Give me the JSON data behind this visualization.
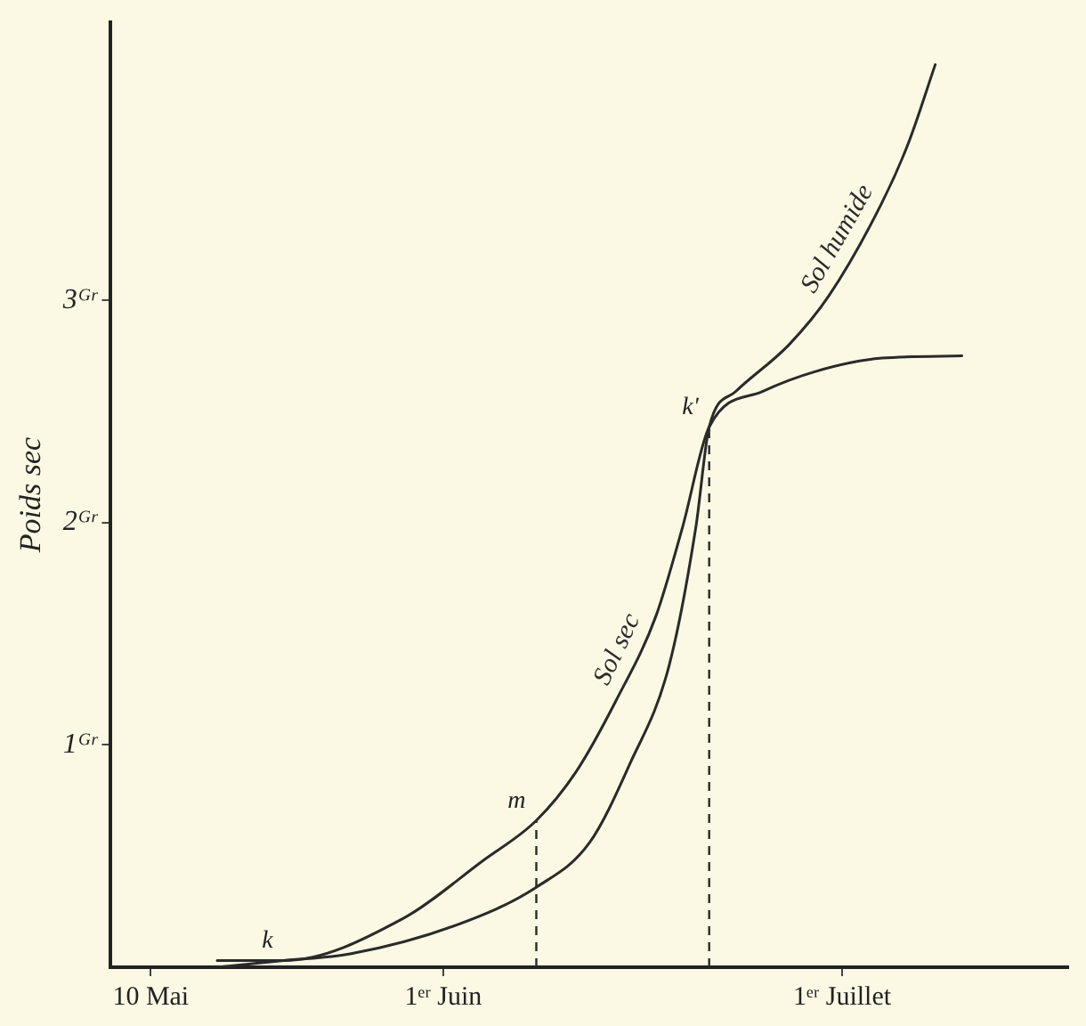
{
  "chart_data": {
    "type": "line",
    "ylabel": "Poids sec",
    "xlim": [
      "--05-07",
      "--07-18"
    ],
    "xticks": [
      {
        "value": "--05-10",
        "label": "10 Mai"
      },
      {
        "value": "--06-01",
        "label": "1ᵉʳ Juin"
      },
      {
        "value": "--07-01",
        "label": "1ᵉʳ Juillet"
      }
    ],
    "ylim": [
      0,
      4.25
    ],
    "yticks": [
      {
        "value": 1,
        "label": "1ᴳʳ"
      },
      {
        "value": 2,
        "label": "2ᴳʳ"
      },
      {
        "value": 3,
        "label": "3ᴳʳ"
      }
    ],
    "grid": false,
    "legend": false,
    "marker": "none",
    "line_style": "solid",
    "series": [
      {
        "name": "Sol sec",
        "color": "#2a2a2a",
        "x": [
          "--05-15",
          "--05-20",
          "--05-29",
          "--06-04",
          "--06-08",
          "--06-11",
          "--06-14",
          "--06-17",
          "--06-19",
          "--06-21",
          "--06-25",
          "--06-29",
          "--07-04",
          "--07-10"
        ],
        "values": [
          0.03,
          0.03,
          0.22,
          0.48,
          0.66,
          0.88,
          1.2,
          1.58,
          1.98,
          2.43,
          2.59,
          2.68,
          2.74,
          2.75
        ]
      },
      {
        "name": "Sol humide",
        "color": "#2a2a2a",
        "x": [
          "--05-15",
          "--05-20",
          "--05-25",
          "--06-02",
          "--06-08",
          "--06-12",
          "--06-15",
          "--06-18",
          "--06-20",
          "--06-21",
          "--06-23",
          "--06-27",
          "--06-30",
          "--07-04",
          "--07-06",
          "--07-08"
        ],
        "values": [
          0,
          0.03,
          0.06,
          0.19,
          0.36,
          0.56,
          0.91,
          1.36,
          1.98,
          2.43,
          2.59,
          2.8,
          3.02,
          3.44,
          3.71,
          4.06
        ]
      }
    ],
    "ref_lines": [
      {
        "axis": "x",
        "value": "--06-08",
        "line_style": "dashed",
        "color": "#2a2a2a"
      },
      {
        "axis": "x",
        "value": "--06-21",
        "line_style": "dashed",
        "color": "#2a2a2a"
      }
    ],
    "annotations": [
      {
        "text": "k",
        "x": "--05-20",
        "y": 0.03
      },
      {
        "text": "m",
        "x": "--06-08",
        "y": 0.66
      },
      {
        "text": "k'",
        "x": "--06-21",
        "y": 2.43
      }
    ]
  }
}
